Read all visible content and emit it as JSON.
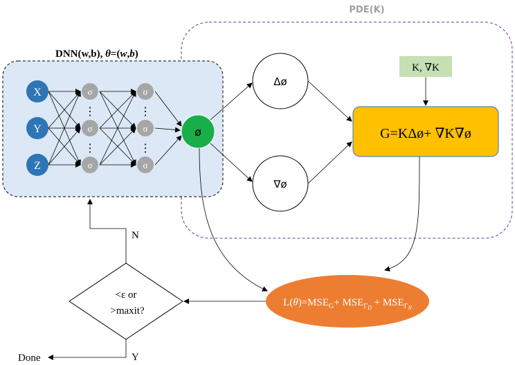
{
  "pde": {
    "title": "PDE(K)"
  },
  "dnn": {
    "title_main": "DNN(w,b), ",
    "title_theta": "θ",
    "title_eq": "=(",
    "title_w": "w",
    "title_comma": ",",
    "title_b": "b",
    "title_close": ")"
  },
  "inputs": [
    "X",
    "Y",
    "Z"
  ],
  "hidden_symbol": "σ",
  "ellipsis": "⋮",
  "output_symbol": "ø",
  "laplacian_label": "Δø",
  "gradient_label": "∇ø",
  "k_box_label": "K, ∇K",
  "g_box_label": "G=KΔø+ ∇K∇ø",
  "loss": {
    "prefix": "L(",
    "theta": "θ",
    "mid": ")=MSE",
    "sub_g": "G",
    "plus1": "+ MSE",
    "sub_d": "Γ",
    "sub_d2": "D",
    "plus2": " + MSE",
    "sub_n": "Γ",
    "sub_n2": "N"
  },
  "decision": {
    "line1": "<ε or",
    "line2": ">maxit?"
  },
  "labels": {
    "no": "N",
    "yes": "Y",
    "done": "Done"
  },
  "colors": {
    "input_node": "#2e75b6",
    "hidden_node": "#a6a6a6",
    "output_node": "#1aae4b",
    "dnn_bg": "#dce8f5",
    "k_box": "#c5e0b4",
    "g_box": "#ffc000",
    "loss_ellipse": "#ed7d31",
    "pde_border": "#7030a0"
  }
}
